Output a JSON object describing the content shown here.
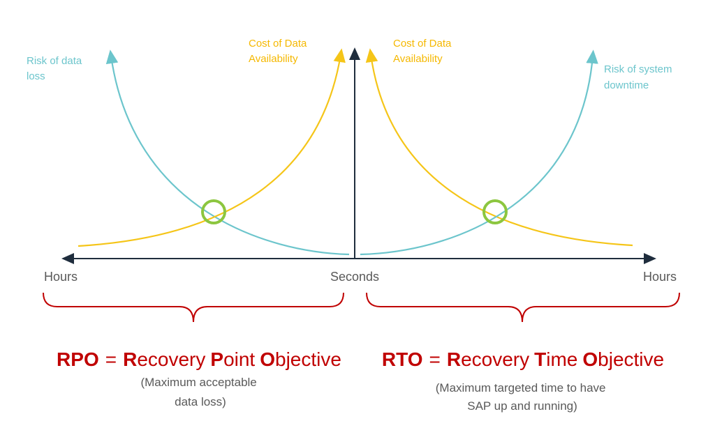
{
  "left": {
    "risk_label": [
      "Risk of data",
      "loss"
    ],
    "cost_label": [
      "Cost of Data",
      "Availability"
    ],
    "heading": {
      "acronym": "RPO",
      "equals": "=",
      "words": [
        "Recovery",
        "Point",
        "Objective"
      ]
    },
    "description": [
      "(Maximum acceptable",
      "data loss)"
    ]
  },
  "right": {
    "risk_label": [
      "Risk of system",
      "downtime"
    ],
    "cost_label": [
      "Cost of Data",
      "Availability"
    ],
    "heading": {
      "acronym": "RTO",
      "equals": "=",
      "words": [
        "Recovery",
        "Time",
        "Objective"
      ]
    },
    "description": [
      "(Maximum targeted time to have",
      "SAP up and running)"
    ]
  },
  "axis": {
    "left_end": "Hours",
    "center": "Seconds",
    "right_end": "Hours"
  }
}
